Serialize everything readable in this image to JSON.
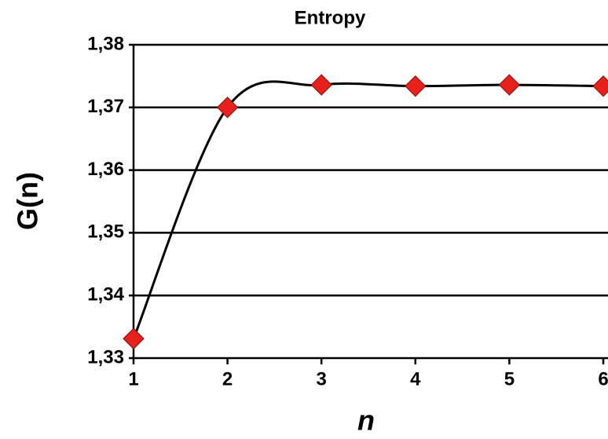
{
  "chart_data": {
    "type": "scatter",
    "title": "Entropy",
    "xlabel": "n",
    "ylabel": "G(n)",
    "x": [
      1,
      2,
      3,
      4,
      5,
      6
    ],
    "values": [
      1.3331,
      1.37,
      1.3736,
      1.3734,
      1.3736,
      1.3734
    ],
    "color": "#e8201c",
    "line_color": "#000000",
    "smooth": true,
    "xlim": [
      1,
      6
    ],
    "xticks": [
      1,
      2,
      3,
      4,
      5,
      6
    ],
    "ylim": [
      1.33,
      1.38
    ],
    "yticks": [
      {
        "value": 1.33,
        "label": "1,33"
      },
      {
        "value": 1.34,
        "label": "1,34"
      },
      {
        "value": 1.35,
        "label": "1,35"
      },
      {
        "value": 1.36,
        "label": "1,36"
      },
      {
        "value": 1.37,
        "label": "1,37"
      },
      {
        "value": 1.38,
        "label": "1,38"
      }
    ],
    "grid": true
  }
}
